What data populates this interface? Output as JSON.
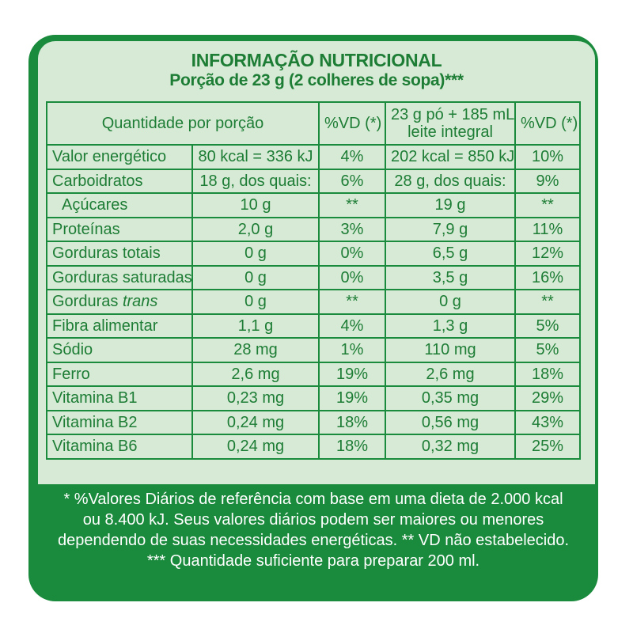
{
  "header": {
    "title": "INFORMAÇÃO NUTRICIONAL",
    "subtitle": "Porção de 23 g (2 colheres de sopa)***"
  },
  "table": {
    "columns": {
      "quantity": "Quantidade por porção",
      "vd1": "%VD (*)",
      "prepared_line1": "23 g pó + 185 mL",
      "prepared_line2": "leite integral",
      "vd2": "%VD (*)"
    },
    "rows": [
      {
        "name": "Valor energético",
        "qty": "80 kcal = 336 kJ",
        "vd": "4%",
        "qty2": "202 kcal = 850 kJ",
        "vd2": "10%"
      },
      {
        "name": "Carboidratos",
        "qty": "18 g, dos quais:",
        "vd": "6%",
        "qty2": "28 g, dos quais:",
        "vd2": "9%"
      },
      {
        "name": "Açúcares",
        "qty": "10 g",
        "vd": "**",
        "qty2": "19 g",
        "vd2": "**"
      },
      {
        "name": "Proteínas",
        "qty": "2,0 g",
        "vd": "3%",
        "qty2": "7,9 g",
        "vd2": "11%"
      },
      {
        "name": "Gorduras totais",
        "qty": "0 g",
        "vd": "0%",
        "qty2": "6,5 g",
        "vd2": "12%"
      },
      {
        "name": "Gorduras saturadas",
        "qty": "0 g",
        "vd": "0%",
        "qty2": "3,5 g",
        "vd2": "16%"
      },
      {
        "name": "Gorduras",
        "name_italic": "trans",
        "qty": "0 g",
        "vd": "**",
        "qty2": "0 g",
        "vd2": "**"
      },
      {
        "name": "Fibra alimentar",
        "qty": "1,1 g",
        "vd": "4%",
        "qty2": "1,3 g",
        "vd2": "5%"
      },
      {
        "name": "Sódio",
        "qty": "28 mg",
        "vd": "1%",
        "qty2": "110 mg",
        "vd2": "5%"
      },
      {
        "name": "Ferro",
        "qty": "2,6 mg",
        "vd": "19%",
        "qty2": "2,6 mg",
        "vd2": "18%"
      },
      {
        "name": "Vitamina B1",
        "qty": "0,23 mg",
        "vd": "19%",
        "qty2": "0,35 mg",
        "vd2": "29%"
      },
      {
        "name": "Vitamina B2",
        "qty": "0,24 mg",
        "vd": "18%",
        "qty2": "0,56 mg",
        "vd2": "43%"
      },
      {
        "name": "Vitamina B6",
        "qty": "0,24 mg",
        "vd": "18%",
        "qty2": "0,32 mg",
        "vd2": "25%"
      }
    ]
  },
  "footer": {
    "line1": "* %Valores Diários de referência com base em uma dieta de 2.000 kcal",
    "line2": "ou 8.400 kJ. Seus valores diários podem ser maiores ou menores",
    "line3": "dependendo de suas necessidades energéticas. ** VD não estabelecido.",
    "line4": "*** Quantidade suficiente para preparar 200 ml."
  },
  "colors": {
    "brand_green": "#1a8a3c",
    "panel_fill": "#d7ead6",
    "text_green": "#1d7d35"
  }
}
